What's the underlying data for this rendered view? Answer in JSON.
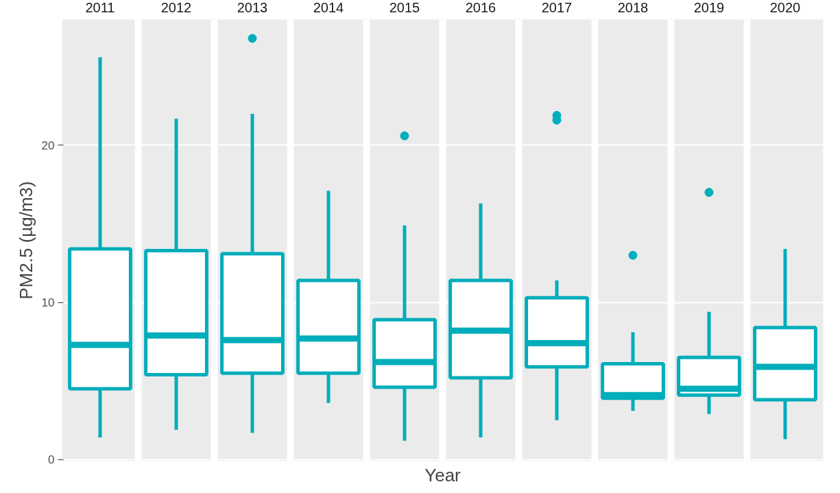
{
  "chart_data": {
    "type": "box",
    "xlabel": "Year",
    "ylabel": "PM2.5 (µg/m3)",
    "categories": [
      "2011",
      "2012",
      "2013",
      "2014",
      "2015",
      "2016",
      "2017",
      "2018",
      "2019",
      "2020"
    ],
    "ylim": [
      -0.1,
      28
    ],
    "yticks": [
      0,
      10,
      20
    ],
    "grid": "y",
    "series": [
      {
        "color": "#00adba",
        "boxes": [
          {
            "low": 1.4,
            "q1": 4.5,
            "median": 7.3,
            "q3": 13.4,
            "high": 25.6
          },
          {
            "low": 1.9,
            "q1": 5.4,
            "median": 7.9,
            "q3": 13.3,
            "high": 21.7
          },
          {
            "low": 1.7,
            "q1": 5.5,
            "median": 7.6,
            "q3": 13.1,
            "high": 22.0,
            "outliers": [
              26.8
            ]
          },
          {
            "low": 3.6,
            "q1": 5.5,
            "median": 7.7,
            "q3": 11.4,
            "high": 17.1
          },
          {
            "low": 1.2,
            "q1": 4.6,
            "median": 6.2,
            "q3": 8.9,
            "high": 14.9,
            "outliers": [
              20.6
            ]
          },
          {
            "low": 1.4,
            "q1": 5.2,
            "median": 8.2,
            "q3": 11.4,
            "high": 16.3
          },
          {
            "low": 2.5,
            "q1": 5.9,
            "median": 7.4,
            "q3": 10.3,
            "high": 11.4,
            "outliers": [
              21.6,
              21.9
            ]
          },
          {
            "low": 3.1,
            "q1": 3.9,
            "median": 4.1,
            "q3": 6.1,
            "high": 8.1,
            "outliers": [
              13.0
            ]
          },
          {
            "low": 2.9,
            "q1": 4.1,
            "median": 4.5,
            "q3": 6.5,
            "high": 9.4,
            "outliers": [
              17.0
            ]
          },
          {
            "low": 1.3,
            "q1": 3.8,
            "median": 5.9,
            "q3": 8.4,
            "high": 13.4
          }
        ]
      }
    ]
  }
}
